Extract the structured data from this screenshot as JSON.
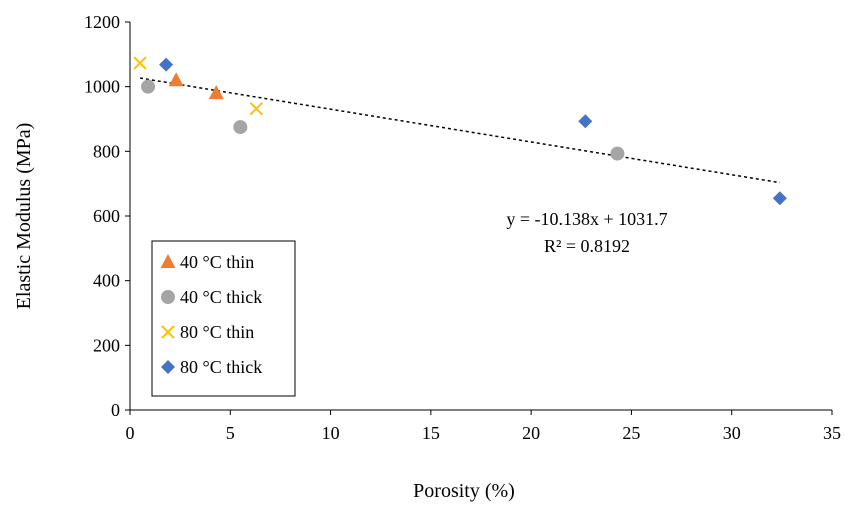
{
  "chart_data": {
    "type": "scatter",
    "title": "",
    "xlabel": "Porosity (%)",
    "ylabel": "Elastic Modulus (MPa)",
    "xlim": [
      0,
      35
    ],
    "ylim": [
      0,
      1200
    ],
    "xticks": [
      0,
      5,
      10,
      15,
      20,
      25,
      30,
      35
    ],
    "yticks": [
      0,
      200,
      400,
      600,
      800,
      1000,
      1200
    ],
    "grid": false,
    "legend_position": "bottom-left",
    "series": [
      {
        "name": "40 °C thin",
        "marker": "triangle",
        "color": "#ED7D31",
        "points": [
          [
            2.3,
            1020
          ],
          [
            4.3,
            980
          ]
        ]
      },
      {
        "name": "40 °C thick",
        "marker": "circle",
        "color": "#A5A5A5",
        "points": [
          [
            0.9,
            1000
          ],
          [
            5.5,
            875
          ],
          [
            24.3,
            793
          ]
        ]
      },
      {
        "name": "80 °C thin",
        "marker": "x",
        "color": "#FFC000",
        "points": [
          [
            0.5,
            1073
          ],
          [
            6.3,
            932
          ]
        ]
      },
      {
        "name": "80 °C thick",
        "marker": "diamond",
        "color": "#4472C4",
        "points": [
          [
            1.8,
            1068
          ],
          [
            22.7,
            893
          ],
          [
            32.4,
            655
          ]
        ]
      }
    ],
    "trendline": {
      "type": "linear",
      "slope": -10.138,
      "intercept": 1031.7,
      "x_range": [
        0.5,
        32.4
      ],
      "equation": "y = -10.138x + 1031.7",
      "r_squared": "R² = 0.8192",
      "style": "dashed",
      "color": "#000000"
    }
  }
}
